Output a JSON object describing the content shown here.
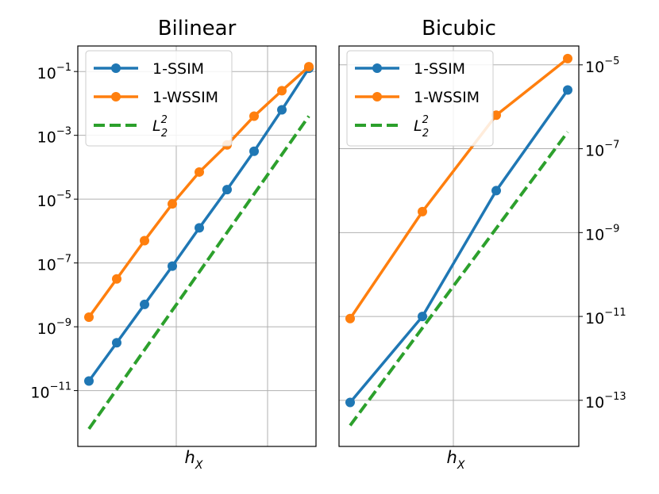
{
  "colors": {
    "ssim": "#1f77b4",
    "wssim": "#ff7f0e",
    "l2": "#2ca02c",
    "grid": "#b0b0b0",
    "axis": "#000000"
  },
  "chart_data": [
    {
      "type": "line",
      "title": "Bilinear",
      "xlabel": "h",
      "xlabel_sub": "X",
      "yscale": "log",
      "x_log": [
        0,
        1,
        2,
        3,
        4,
        5,
        6,
        7,
        8
      ],
      "ylim_log10": [
        -12.75,
        -0.2
      ],
      "yticks_log10": [
        -11,
        -9,
        -7,
        -5,
        -3,
        -1
      ],
      "ytick_labels": [
        {
          "base": "10",
          "exp": "−11"
        },
        {
          "base": "10",
          "exp": "−9"
        },
        {
          "base": "10",
          "exp": "−7"
        },
        {
          "base": "10",
          "exp": "−5"
        },
        {
          "base": "10",
          "exp": "−3"
        },
        {
          "base": "10",
          "exp": "−1"
        }
      ],
      "yaxis_side": "left",
      "legend_position": "top-left",
      "series": [
        {
          "name": "1-SSIM",
          "color_key": "ssim",
          "style": "line-marker",
          "log10_values": [
            -10.7,
            -9.5,
            -8.3,
            -7.1,
            -5.9,
            -4.7,
            -3.5,
            -2.2,
            -0.9
          ]
        },
        {
          "name": "1-WSSIM",
          "color_key": "wssim",
          "style": "line-marker",
          "log10_values": [
            -8.7,
            -7.5,
            -6.3,
            -5.15,
            -4.15,
            -3.3,
            -2.4,
            -1.6,
            -0.85
          ]
        },
        {
          "name": "L",
          "name_sub": "2",
          "name_sup": "2",
          "color_key": "l2",
          "style": "dashed",
          "x_range": [
            0,
            8
          ],
          "log10_endpoints": [
            -12.2,
            -2.4
          ]
        }
      ]
    },
    {
      "type": "line",
      "title": "Bicubic",
      "xlabel": "h",
      "xlabel_sub": "X",
      "yscale": "log",
      "x_log": [
        0,
        1,
        2,
        3
      ],
      "ylim_log10": [
        -14.1,
        -4.55
      ],
      "yticks_log10": [
        -13,
        -11,
        -9,
        -7,
        -5
      ],
      "ytick_labels": [
        {
          "base": "10",
          "exp": "−13"
        },
        {
          "base": "10",
          "exp": "−11"
        },
        {
          "base": "10",
          "exp": "−9"
        },
        {
          "base": "10",
          "exp": "−7"
        },
        {
          "base": "10",
          "exp": "−5"
        }
      ],
      "yaxis_side": "right",
      "legend_position": "top-left",
      "series": [
        {
          "name": "1-SSIM",
          "color_key": "ssim",
          "style": "line-marker",
          "log10_values": [
            -13.05,
            -11.0,
            -8.0,
            -5.6
          ]
        },
        {
          "name": "1-WSSIM",
          "color_key": "wssim",
          "style": "line-marker",
          "log10_values": [
            -11.05,
            -8.5,
            -6.2,
            -4.85
          ]
        },
        {
          "name": "L",
          "name_sub": "2",
          "name_sup": "2",
          "color_key": "l2",
          "style": "dashed",
          "x_range": [
            0,
            3
          ],
          "log10_endpoints": [
            -13.6,
            -6.6
          ]
        }
      ]
    }
  ]
}
